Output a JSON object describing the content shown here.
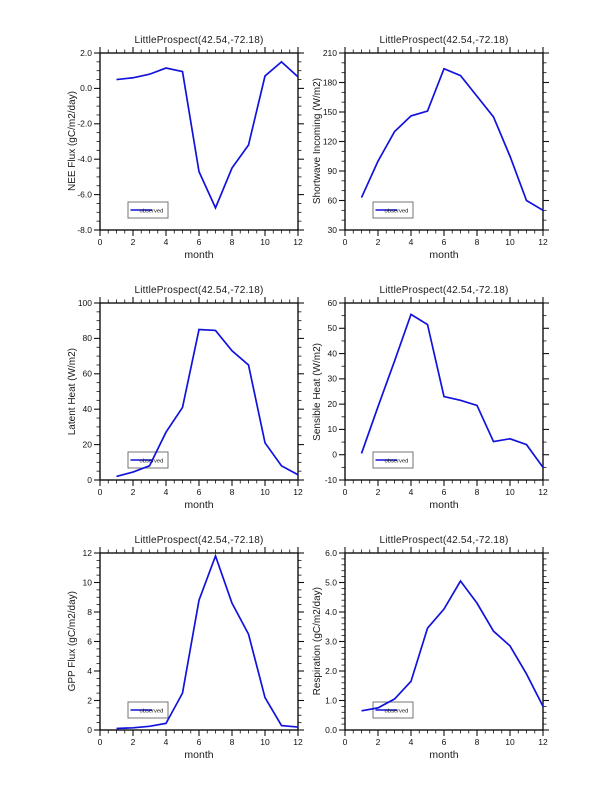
{
  "page": {
    "background": "#ffffff",
    "text_color": "#111111"
  },
  "accent": {
    "line_color": "#1212dd",
    "frame_color": "#111111",
    "legend_border": "#666666"
  },
  "legend_label": "observed",
  "chart_data": [
    {
      "type": "line",
      "title": "LittleProspect(42.54,-72.18)",
      "xlabel": "month",
      "ylabel": "NEE Flux (gC/m2/day)",
      "x": [
        1,
        2,
        3,
        4,
        5,
        6,
        7,
        8,
        9,
        10,
        11,
        12
      ],
      "values": [
        0.5,
        0.6,
        0.8,
        1.15,
        0.95,
        -4.7,
        -6.75,
        -4.5,
        -3.2,
        0.7,
        1.5,
        0.65
      ],
      "xlim": [
        0,
        12
      ],
      "ylim": [
        -8,
        2
      ],
      "xticks": [
        0,
        2,
        4,
        6,
        8,
        10,
        12
      ],
      "xtick_labels": [
        "0",
        "2",
        "4",
        "6",
        "8",
        "10",
        "12"
      ],
      "yticks": [
        -8,
        -6,
        -4,
        -2,
        0,
        2
      ],
      "ytick_labels": [
        "-8.0",
        "-6.0",
        "-4.0",
        "-2.0",
        "0.0",
        "2.0"
      ],
      "x_minor_per_major": 3,
      "y_minor_per_major": 3,
      "grid": false,
      "legend": {
        "label": "observed",
        "position": "lower-left"
      },
      "line_color": "#1212dd"
    },
    {
      "type": "line",
      "title": "LittleProspect(42.54,-72.18)",
      "xlabel": "month",
      "ylabel": "Shortwave Incoming (W/m2)",
      "x": [
        1,
        2,
        3,
        4,
        5,
        6,
        7,
        8,
        9,
        10,
        11,
        12
      ],
      "values": [
        63,
        100,
        130,
        146,
        151,
        194,
        187,
        166,
        145,
        105,
        60,
        50
      ],
      "xlim": [
        0,
        12
      ],
      "ylim": [
        30,
        210
      ],
      "xticks": [
        0,
        2,
        4,
        6,
        8,
        10,
        12
      ],
      "xtick_labels": [
        "0",
        "2",
        "4",
        "6",
        "8",
        "10",
        "12"
      ],
      "yticks": [
        30,
        60,
        90,
        120,
        150,
        180,
        210
      ],
      "ytick_labels": [
        "30",
        "60",
        "90",
        "120",
        "150",
        "180",
        "210"
      ],
      "x_minor_per_major": 3,
      "y_minor_per_major": 2,
      "grid": false,
      "legend": {
        "label": "observed",
        "position": "lower-left"
      },
      "line_color": "#1212dd"
    },
    {
      "type": "line",
      "title": "LittleProspect(42.54,-72.18)",
      "xlabel": "month",
      "ylabel": "Latent Heat (W/m2)",
      "x": [
        1,
        2,
        3,
        4,
        5,
        6,
        7,
        8,
        9,
        10,
        11,
        12
      ],
      "values": [
        2,
        4.5,
        8,
        27,
        41,
        85,
        84.5,
        73,
        65,
        21,
        8,
        3
      ],
      "xlim": [
        0,
        12
      ],
      "ylim": [
        0,
        100
      ],
      "xticks": [
        0,
        2,
        4,
        6,
        8,
        10,
        12
      ],
      "xtick_labels": [
        "0",
        "2",
        "4",
        "6",
        "8",
        "10",
        "12"
      ],
      "yticks": [
        0,
        20,
        40,
        60,
        80,
        100
      ],
      "ytick_labels": [
        "0",
        "20",
        "40",
        "60",
        "80",
        "100"
      ],
      "x_minor_per_major": 3,
      "y_minor_per_major": 3,
      "grid": false,
      "legend": {
        "label": "observed",
        "position": "lower-left"
      },
      "line_color": "#1212dd"
    },
    {
      "type": "line",
      "title": "LittleProspect(42.54,-72.18)",
      "xlabel": "month",
      "ylabel": "Sensible Heat (W/m2)",
      "x": [
        1,
        2,
        3,
        4,
        5,
        6,
        7,
        8,
        9,
        10,
        11,
        12
      ],
      "values": [
        0.5,
        19,
        37,
        55.5,
        51.5,
        23,
        21.5,
        19.5,
        5.2,
        6.3,
        4,
        -5
      ],
      "xlim": [
        0,
        12
      ],
      "ylim": [
        -10,
        60
      ],
      "xticks": [
        0,
        2,
        4,
        6,
        8,
        10,
        12
      ],
      "xtick_labels": [
        "0",
        "2",
        "4",
        "6",
        "8",
        "10",
        "12"
      ],
      "yticks": [
        -10,
        0,
        10,
        20,
        30,
        40,
        50,
        60
      ],
      "ytick_labels": [
        "-10",
        "0",
        "10",
        "20",
        "30",
        "40",
        "50",
        "60"
      ],
      "x_minor_per_major": 3,
      "y_minor_per_major": 1,
      "grid": false,
      "legend": {
        "label": "observed",
        "position": "lower-left"
      },
      "line_color": "#1212dd"
    },
    {
      "type": "line",
      "title": "LittleProspect(42.54,-72.18)",
      "xlabel": "month",
      "ylabel": "GPP Flux (gC/m2/day)",
      "x": [
        1,
        2,
        3,
        4,
        5,
        6,
        7,
        8,
        9,
        10,
        11,
        12
      ],
      "values": [
        0.1,
        0.15,
        0.25,
        0.45,
        2.5,
        8.8,
        11.8,
        8.6,
        6.5,
        2.2,
        0.3,
        0.2
      ],
      "xlim": [
        0,
        12
      ],
      "ylim": [
        0,
        12
      ],
      "xticks": [
        0,
        2,
        4,
        6,
        8,
        10,
        12
      ],
      "xtick_labels": [
        "0",
        "2",
        "4",
        "6",
        "8",
        "10",
        "12"
      ],
      "yticks": [
        0,
        2,
        4,
        6,
        8,
        10,
        12
      ],
      "ytick_labels": [
        "0",
        "2",
        "4",
        "6",
        "8",
        "10",
        "12"
      ],
      "x_minor_per_major": 3,
      "y_minor_per_major": 3,
      "grid": false,
      "legend": {
        "label": "observed",
        "position": "lower-left"
      },
      "line_color": "#1212dd"
    },
    {
      "type": "line",
      "title": "LittleProspect(42.54,-72.18)",
      "xlabel": "month",
      "ylabel": "Respiration (gC/m2/day)",
      "x": [
        1,
        2,
        3,
        4,
        5,
        6,
        7,
        8,
        9,
        10,
        11,
        12
      ],
      "values": [
        0.65,
        0.75,
        1.05,
        1.65,
        3.45,
        4.1,
        5.05,
        4.3,
        3.35,
        2.85,
        1.9,
        0.8
      ],
      "xlim": [
        0,
        12
      ],
      "ylim": [
        0,
        6
      ],
      "xticks": [
        0,
        2,
        4,
        6,
        8,
        10,
        12
      ],
      "xtick_labels": [
        "0",
        "2",
        "4",
        "6",
        "8",
        "10",
        "12"
      ],
      "yticks": [
        0,
        1,
        2,
        3,
        4,
        5,
        6
      ],
      "ytick_labels": [
        "0.0",
        "1.0",
        "2.0",
        "3.0",
        "4.0",
        "5.0",
        "6.0"
      ],
      "x_minor_per_major": 3,
      "y_minor_per_major": 4,
      "grid": false,
      "legend": {
        "label": "observed",
        "position": "lower-left"
      },
      "line_color": "#1212dd"
    }
  ]
}
